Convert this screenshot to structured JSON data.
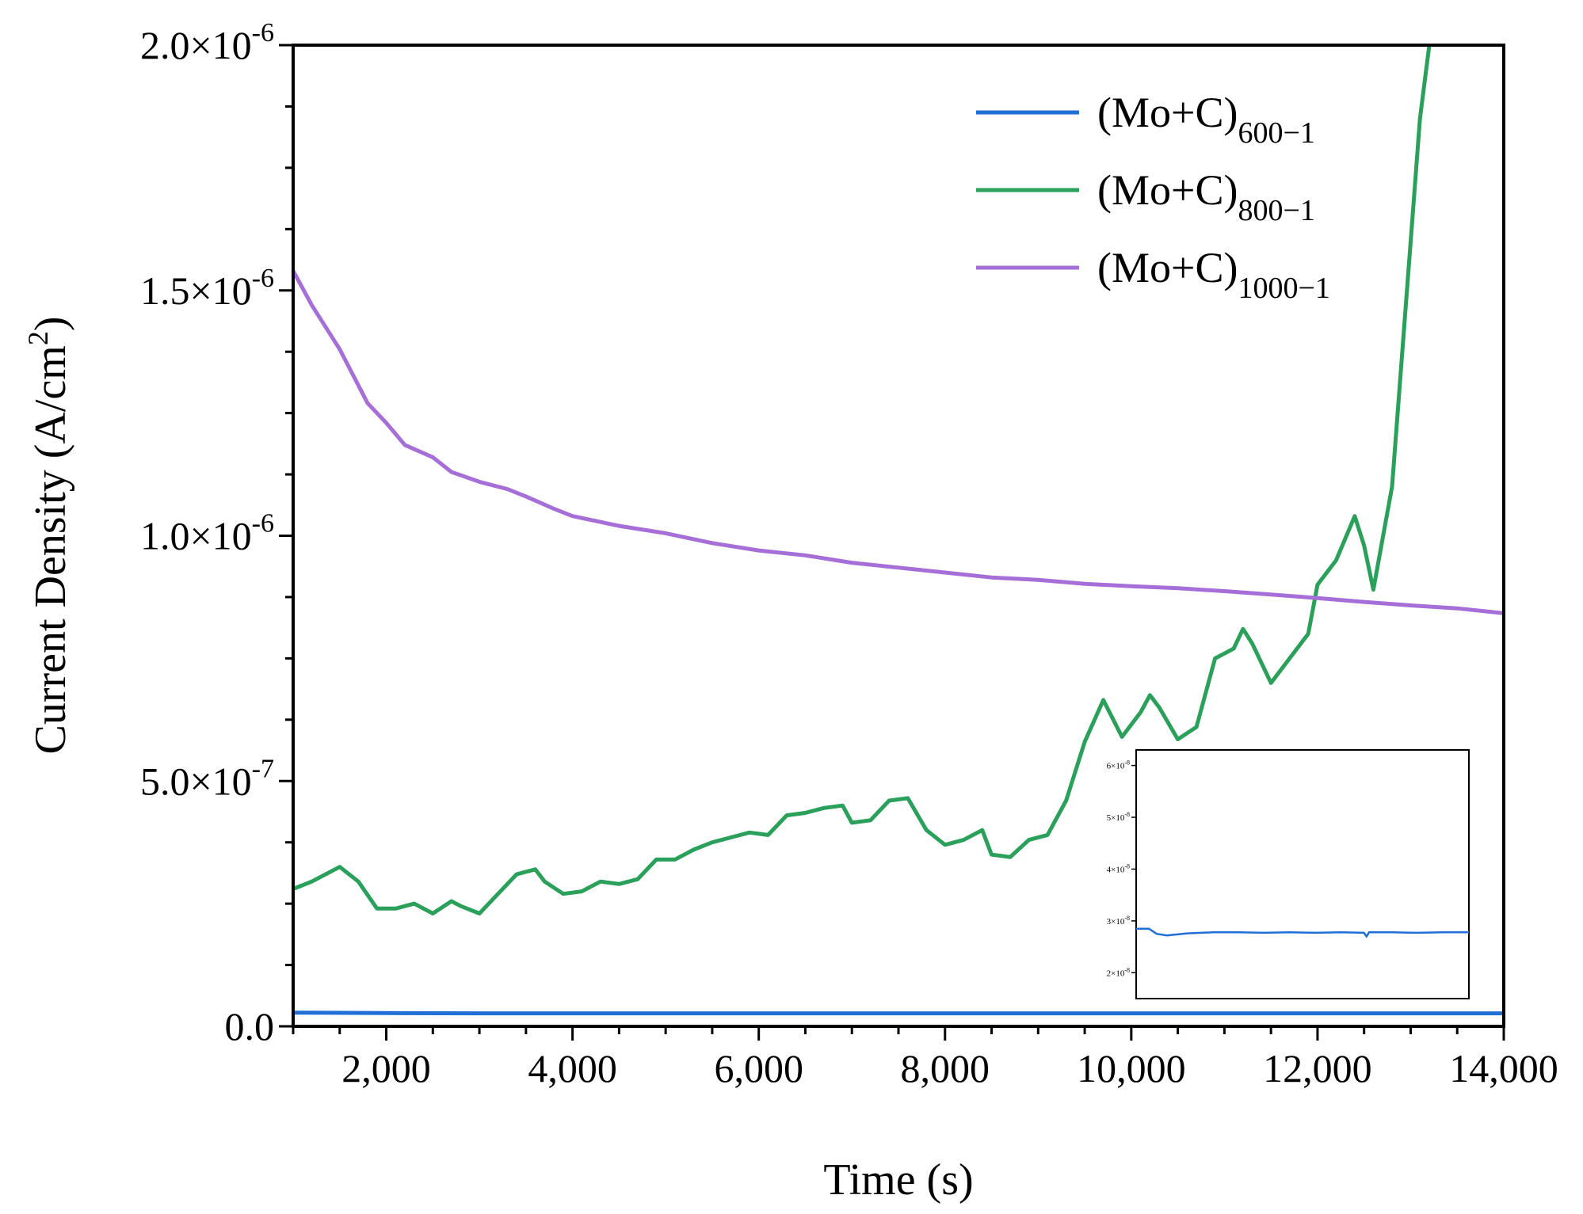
{
  "chart_data": {
    "type": "line",
    "title": "",
    "xlabel": "Time (s)",
    "ylabel": "Current Density (A/cm²)",
    "ylabel_parts": {
      "main": "Current Density (A/cm",
      "sup": "2",
      "close": ")"
    },
    "xlim": [
      1000,
      14000
    ],
    "ylim": [
      0,
      2e-06
    ],
    "grid": false,
    "legend_position": "top-right",
    "x_ticks": [
      2000,
      4000,
      6000,
      8000,
      10000,
      12000,
      14000
    ],
    "x_tick_labels": [
      "2,000",
      "4,000",
      "6,000",
      "8,000",
      "10,000",
      "12,000",
      "14,000"
    ],
    "y_ticks": [
      0,
      5e-07,
      1e-06,
      1.5e-06,
      2e-06
    ],
    "y_tick_labels": [
      {
        "mantissa": "0.0",
        "exp": ""
      },
      {
        "mantissa": "5.0×10",
        "exp": "-7"
      },
      {
        "mantissa": "1.0×10",
        "exp": "-6"
      },
      {
        "mantissa": "1.5×10",
        "exp": "-6"
      },
      {
        "mantissa": "2.0×10",
        "exp": "-6"
      }
    ],
    "series": [
      {
        "name": "(Mo+C)600−1",
        "label_main": "(Mo+C)",
        "label_sub": "600−1",
        "color": "#1f6fd6",
        "x": [
          1000,
          2000,
          3000,
          4000,
          5000,
          6000,
          7000,
          8000,
          9000,
          10000,
          11000,
          12000,
          13000,
          14000
        ],
        "y": [
          2.8e-08,
          2.7e-08,
          2.65e-08,
          2.65e-08,
          2.65e-08,
          2.65e-08,
          2.65e-08,
          2.65e-08,
          2.65e-08,
          2.65e-08,
          2.65e-08,
          2.65e-08,
          2.65e-08,
          2.65e-08
        ]
      },
      {
        "name": "(Mo+C)800−1",
        "label_main": "(Mo+C)",
        "label_sub": "800−1",
        "color": "#2aa05a",
        "x": [
          1000,
          1200,
          1500,
          1700,
          1900,
          2100,
          2300,
          2500,
          2700,
          2800,
          3000,
          3200,
          3400,
          3600,
          3700,
          3900,
          4100,
          4300,
          4500,
          4700,
          4900,
          5100,
          5300,
          5500,
          5700,
          5900,
          6100,
          6300,
          6500,
          6700,
          6900,
          7000,
          7200,
          7400,
          7600,
          7800,
          8000,
          8200,
          8400,
          8500,
          8700,
          8900,
          9100,
          9300,
          9500,
          9700,
          9900,
          10100,
          10200,
          10300,
          10500,
          10700,
          10900,
          11100,
          11200,
          11300,
          11500,
          11700,
          11900,
          12000,
          12200,
          12400,
          12500,
          12600,
          12800,
          13000,
          13100,
          13200
        ],
        "y": [
          2.8e-07,
          2.95e-07,
          3.25e-07,
          2.95e-07,
          2.4e-07,
          2.4e-07,
          2.5e-07,
          2.3e-07,
          2.55e-07,
          2.45e-07,
          2.3e-07,
          2.7e-07,
          3.1e-07,
          3.2e-07,
          2.95e-07,
          2.7e-07,
          2.75e-07,
          2.95e-07,
          2.9e-07,
          3e-07,
          3.4e-07,
          3.4e-07,
          3.6e-07,
          3.75e-07,
          3.85e-07,
          3.95e-07,
          3.9e-07,
          4.3e-07,
          4.35e-07,
          4.45e-07,
          4.5e-07,
          4.15e-07,
          4.2e-07,
          4.6e-07,
          4.65e-07,
          4e-07,
          3.7e-07,
          3.8e-07,
          4e-07,
          3.5e-07,
          3.45e-07,
          3.8e-07,
          3.9e-07,
          4.6e-07,
          5.8e-07,
          6.65e-07,
          5.9e-07,
          6.4e-07,
          6.75e-07,
          6.5e-07,
          5.85e-07,
          6.1e-07,
          7.5e-07,
          7.7e-07,
          8.1e-07,
          7.8e-07,
          7e-07,
          7.5e-07,
          8e-07,
          9e-07,
          9.5e-07,
          1.04e-06,
          9.8e-07,
          8.9e-07,
          1.1e-06,
          1.6e-06,
          1.85e-06,
          2e-06
        ]
      },
      {
        "name": "(Mo+C)1000−1",
        "label_main": "(Mo+C)",
        "label_sub": "1000−1",
        "color": "#a66fd8",
        "x": [
          1000,
          1200,
          1500,
          1800,
          2000,
          2200,
          2500,
          2700,
          3000,
          3300,
          3500,
          3800,
          4000,
          4500,
          5000,
          5500,
          6000,
          6500,
          7000,
          7500,
          8000,
          8500,
          9000,
          9500,
          10000,
          10500,
          11000,
          11500,
          12000,
          12500,
          13000,
          13500,
          14000
        ],
        "y": [
          1.54e-06,
          1.47e-06,
          1.38e-06,
          1.27e-06,
          1.23e-06,
          1.185e-06,
          1.16e-06,
          1.13e-06,
          1.11e-06,
          1.095e-06,
          1.08e-06,
          1.055e-06,
          1.04e-06,
          1.02e-06,
          1.005e-06,
          9.85e-07,
          9.7e-07,
          9.6e-07,
          9.45e-07,
          9.35e-07,
          9.25e-07,
          9.15e-07,
          9.1e-07,
          9.02e-07,
          8.97e-07,
          8.93e-07,
          8.87e-07,
          8.8e-07,
          8.73e-07,
          8.65e-07,
          8.58e-07,
          8.52e-07,
          8.42e-07
        ]
      }
    ],
    "inset": {
      "description_series": "(Mo+C)600−1",
      "color": "#1f6fd6",
      "ylim": [
        1.5e-08,
        6.3e-08
      ],
      "y_ticks": [
        2e-08,
        3e-08,
        4e-08,
        5e-08,
        6e-08
      ],
      "y_tick_labels": [
        {
          "mantissa": "2×10",
          "exp": "-8"
        },
        {
          "mantissa": "3×10",
          "exp": "-8"
        },
        {
          "mantissa": "4×10",
          "exp": "-8"
        },
        {
          "mantissa": "5×10",
          "exp": "-8"
        },
        {
          "mantissa": "6×10",
          "exp": "-8"
        }
      ],
      "xlim": [
        1000,
        14000
      ],
      "x": [
        1000,
        1500,
        1800,
        2200,
        3000,
        4000,
        5000,
        6000,
        7000,
        8000,
        9000,
        9900,
        10000,
        10100,
        11000,
        12000,
        13000,
        14000
      ],
      "y": [
        2.85e-08,
        2.85e-08,
        2.75e-08,
        2.72e-08,
        2.76e-08,
        2.78e-08,
        2.78e-08,
        2.77e-08,
        2.78e-08,
        2.77e-08,
        2.78e-08,
        2.77e-08,
        2.7e-08,
        2.78e-08,
        2.78e-08,
        2.77e-08,
        2.78e-08,
        2.78e-08
      ]
    }
  }
}
